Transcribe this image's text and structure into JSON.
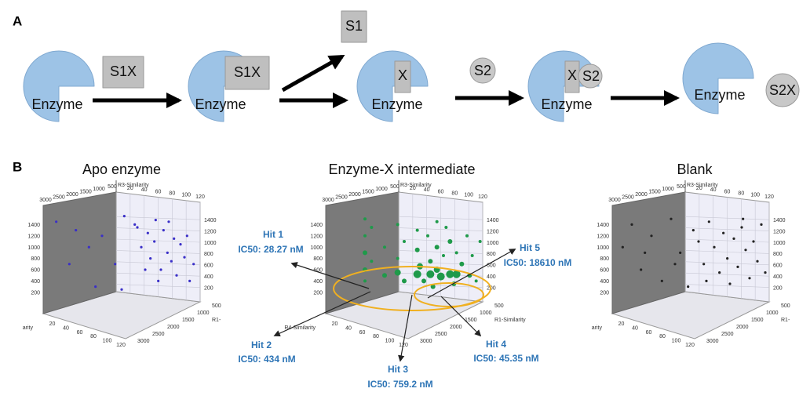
{
  "panel_a": {
    "label": "A",
    "labels": [
      "S1X",
      "Enzyme",
      "S1X",
      "Enzyme",
      "S1",
      "X",
      "Enzyme",
      "S2",
      "X",
      "S2",
      "Enzyme",
      "Enzyme",
      "S2X"
    ]
  },
  "panel_b": {
    "label": "B",
    "plots": [
      {
        "title": "Apo enzyme",
        "color": "#3a2fc8",
        "axis_top": "R3-Similarity",
        "axis_right": "R1-",
        "axis_left": "arity",
        "zticks": [
          3000,
          2500,
          2000,
          1500,
          1000,
          500
        ],
        "xticks": [
          20,
          40,
          60,
          80,
          100,
          120
        ],
        "yticks": [
          200,
          400,
          600,
          800,
          1000,
          1200,
          1400
        ],
        "points": [
          [
            10,
            1350
          ],
          [
            25,
            1200
          ],
          [
            35,
            900
          ],
          [
            45,
            1100
          ],
          [
            55,
            600
          ],
          [
            62,
            1450
          ],
          [
            70,
            1300
          ],
          [
            72,
            1250
          ],
          [
            75,
            900
          ],
          [
            80,
            1150
          ],
          [
            82,
            700
          ],
          [
            85,
            1000
          ],
          [
            88,
            300
          ],
          [
            90,
            500
          ],
          [
            92,
            1200
          ],
          [
            95,
            800
          ],
          [
            98,
            650
          ],
          [
            100,
            1050
          ],
          [
            102,
            400
          ],
          [
            105,
            950
          ],
          [
            108,
            720
          ],
          [
            110,
            1100
          ],
          [
            112,
            300
          ],
          [
            115,
            600
          ],
          [
            60,
            150
          ],
          [
            40,
            200
          ],
          [
            20,
            600
          ],
          [
            78,
            500
          ],
          [
            86,
            1380
          ],
          [
            96,
            1350
          ]
        ]
      },
      {
        "title": "Enzyme-X intermediate",
        "color": "#1f9a4a",
        "axis_top": "R3-Similarity",
        "axis_right": "R1-Similarity",
        "axis_left": "R4-Similarity",
        "zticks": [
          3000,
          2500,
          2000,
          1500,
          1000,
          500
        ],
        "xticks": [
          20,
          40,
          60,
          80,
          100,
          120
        ],
        "yticks": [
          200,
          400,
          600,
          800,
          1000,
          1200,
          1400
        ],
        "points": [
          [
            30,
            1400,
            2
          ],
          [
            30,
            1100,
            2
          ],
          [
            30,
            800,
            3
          ],
          [
            30,
            500,
            3
          ],
          [
            30,
            300,
            2
          ],
          [
            35,
            1250,
            2
          ],
          [
            35,
            650,
            2
          ],
          [
            45,
            900,
            2
          ],
          [
            45,
            400,
            3
          ],
          [
            55,
            1300,
            2
          ],
          [
            55,
            700,
            2
          ],
          [
            55,
            450,
            4
          ],
          [
            60,
            1000,
            2
          ],
          [
            60,
            300,
            3
          ],
          [
            70,
            1200,
            2
          ],
          [
            70,
            850,
            3
          ],
          [
            70,
            420,
            5
          ],
          [
            72,
            560,
            4
          ],
          [
            75,
            300,
            3
          ],
          [
            78,
            1100,
            2
          ],
          [
            80,
            650,
            3
          ],
          [
            80,
            420,
            5
          ],
          [
            82,
            200,
            3
          ],
          [
            85,
            1350,
            2
          ],
          [
            85,
            900,
            3
          ],
          [
            85,
            500,
            4
          ],
          [
            88,
            380,
            5
          ],
          [
            90,
            750,
            2
          ],
          [
            92,
            1250,
            2
          ],
          [
            95,
            1000,
            3
          ],
          [
            95,
            420,
            5
          ],
          [
            98,
            250,
            3
          ],
          [
            100,
            800,
            2
          ],
          [
            100,
            420,
            5
          ],
          [
            104,
            600,
            3
          ],
          [
            108,
            1100,
            2
          ],
          [
            110,
            400,
            3
          ],
          [
            112,
            750,
            2
          ],
          [
            115,
            300,
            2
          ],
          [
            118,
            1000,
            2
          ]
        ]
      },
      {
        "title": "Blank",
        "color": "#222222",
        "axis_top": "R3-Similarity",
        "axis_right": "R1-",
        "axis_left": "arity",
        "zticks": [
          3000,
          2500,
          2000,
          1500,
          1000,
          500
        ],
        "xticks": [
          20,
          40,
          60,
          80,
          100,
          120
        ],
        "yticks": [
          200,
          400,
          600,
          800,
          1000,
          1200,
          1400
        ],
        "points": [
          [
            8,
            900
          ],
          [
            15,
            1300
          ],
          [
            22,
            500
          ],
          [
            30,
            1100
          ],
          [
            38,
            300
          ],
          [
            45,
            1400
          ],
          [
            52,
            800
          ],
          [
            58,
            200
          ],
          [
            62,
            1200
          ],
          [
            66,
            1000
          ],
          [
            70,
            600
          ],
          [
            74,
            1350
          ],
          [
            78,
            900
          ],
          [
            82,
            450
          ],
          [
            85,
            1150
          ],
          [
            88,
            700
          ],
          [
            90,
            250
          ],
          [
            93,
            1050
          ],
          [
            96,
            550
          ],
          [
            99,
            1250
          ],
          [
            102,
            850
          ],
          [
            105,
            350
          ],
          [
            108,
            1000
          ],
          [
            111,
            650
          ],
          [
            114,
            1300
          ],
          [
            117,
            450
          ],
          [
            25,
            800
          ],
          [
            48,
            600
          ],
          [
            72,
            300
          ],
          [
            100,
            1400
          ]
        ]
      }
    ],
    "hits": [
      {
        "name": "Hit 1",
        "ic50": "IC50: 28.27 nM"
      },
      {
        "name": "Hit 2",
        "ic50": "IC50: 434 nM"
      },
      {
        "name": "Hit 3",
        "ic50": "IC50: 759.2 nM"
      },
      {
        "name": "Hit 4",
        "ic50": "IC50: 45.35 nM"
      },
      {
        "name": "Hit 5",
        "ic50": "IC50: 18610 nM"
      }
    ]
  }
}
